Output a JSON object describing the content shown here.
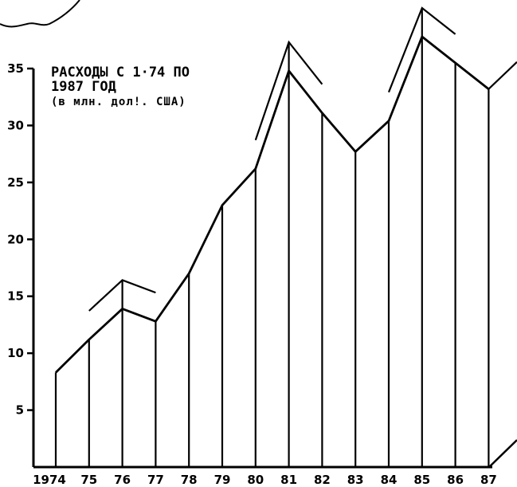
{
  "chart_data": {
    "type": "area",
    "title_lines": [
      "РАСХОДЫ С 1·74 ПО",
      "1987 ГОД",
      "(в млн. дол!. США)"
    ],
    "categories": [
      "1974",
      "75",
      "76",
      "77",
      "78",
      "79",
      "80",
      "81",
      "82",
      "83",
      "84",
      "85",
      "86",
      "87"
    ],
    "values": [
      8.3,
      11.2,
      13.9,
      12.8,
      17.0,
      23.0,
      26.2,
      34.8,
      31.1,
      27.7,
      30.4,
      37.8,
      35.5,
      33.2
    ],
    "y_ticks": [
      5,
      10,
      15,
      20,
      25,
      30,
      35
    ],
    "ylim": [
      0,
      35
    ],
    "grid": false,
    "legend": "none",
    "line_color": "#000000",
    "fill_color": "#ffffff"
  }
}
